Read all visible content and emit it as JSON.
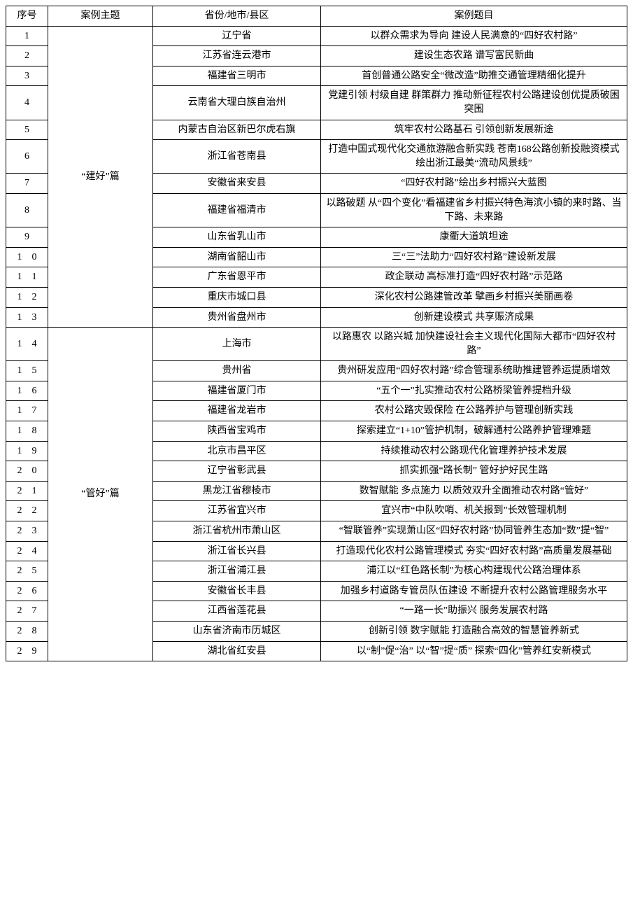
{
  "table": {
    "columns": {
      "seq": "序号",
      "theme": "案例主题",
      "region": "省份/地市/县区",
      "title": "案例题目"
    },
    "column_widths": {
      "seq": 60,
      "theme": 150,
      "region": 240
    },
    "font_family": "SimSun",
    "font_size_pt": 14,
    "border_color": "#000000",
    "background_color": "#ffffff",
    "themes": [
      {
        "label": "“建好”篇",
        "start": 1,
        "end": 13
      },
      {
        "label": "“管好”篇",
        "start": 14,
        "end": 29
      }
    ],
    "rows": [
      {
        "seq": "1",
        "region": "辽宁省",
        "title": "以群众需求为导向 建设人民满意的“四好农村路”"
      },
      {
        "seq": "2",
        "region": "江苏省连云港市",
        "title": "建设生态农路 谱写富民新曲"
      },
      {
        "seq": "3",
        "region": "福建省三明市",
        "title": "首创普通公路安全“微改造”助推交通管理精细化提升"
      },
      {
        "seq": "4",
        "region": "云南省大理白族自治州",
        "title": "党建引领 村级自建 群策群力 推动新征程农村公路建设创优提质破困突围"
      },
      {
        "seq": "5",
        "region": "内蒙古自治区新巴尔虎右旗",
        "title": "筑牢农村公路基石 引领创新发展新途"
      },
      {
        "seq": "6",
        "region": "浙江省苍南县",
        "title": "打造中国式现代化交通旅游融合新实践 苍南168公路创新投融资模式绘出浙江最美“流动风景线”"
      },
      {
        "seq": "7",
        "region": "安徽省来安县",
        "title": "“四好农村路”绘出乡村振兴大蓝图"
      },
      {
        "seq": "8",
        "region": "福建省福清市",
        "title": "以路破题 从“四个变化”看福建省乡村振兴特色海滨小镇的来时路、当下路、未来路"
      },
      {
        "seq": "9",
        "region": "山东省乳山市",
        "title": "康衢大道筑坦途"
      },
      {
        "seq": "10",
        "region": "湖南省韶山市",
        "title": "三“三”法助力“四好农村路”建设新发展"
      },
      {
        "seq": "11",
        "region": "广东省恩平市",
        "title": "政企联动 高标准打造“四好农村路”示范路"
      },
      {
        "seq": "12",
        "region": "重庆市城口县",
        "title": "深化农村公路建管改革 擘画乡村振兴美丽画卷"
      },
      {
        "seq": "13",
        "region": "贵州省盘州市",
        "title": "创新建设模式 共享赈济成果"
      },
      {
        "seq": "14",
        "region": "上海市",
        "title": "以路惠农 以路兴城 加快建设社会主义现代化国际大都市“四好农村路”"
      },
      {
        "seq": "15",
        "region": "贵州省",
        "title": "贵州研发应用“四好农村路”综合管理系统助推建管养运提质增效"
      },
      {
        "seq": "16",
        "region": "福建省厦门市",
        "title": "“五个一”扎实推动农村公路桥梁管养提档升级"
      },
      {
        "seq": "17",
        "region": "福建省龙岩市",
        "title": "农村公路灾毁保险 在公路养护与管理创新实践"
      },
      {
        "seq": "18",
        "region": "陕西省宝鸡市",
        "title": "探索建立“1+10”管护机制，破解通村公路养护管理难题"
      },
      {
        "seq": "19",
        "region": "北京市昌平区",
        "title": "持续推动农村公路现代化管理养护技术发展"
      },
      {
        "seq": "20",
        "region": "辽宁省彰武县",
        "title": "抓实抓强“路长制” 管好护好民生路"
      },
      {
        "seq": "21",
        "region": "黑龙江省穆棱市",
        "title": "数智赋能 多点施力 以质效双升全面推动农村路“管好”"
      },
      {
        "seq": "22",
        "region": "江苏省宜兴市",
        "title": "宜兴市“中队吹哨、机关报到”长效管理机制"
      },
      {
        "seq": "23",
        "region": "浙江省杭州市萧山区",
        "title": "“智联管养”实现萧山区“四好农村路”协同管养生态加“数”提“智”"
      },
      {
        "seq": "24",
        "region": "浙江省长兴县",
        "title": "打造现代化农村公路管理模式 夯实“四好农村路”高质量发展基础"
      },
      {
        "seq": "25",
        "region": "浙江省浦江县",
        "title": "浦江以“红色路长制”为核心构建现代公路治理体系"
      },
      {
        "seq": "26",
        "region": "安徽省长丰县",
        "title": "加强乡村道路专管员队伍建设 不断提升农村公路管理服务水平"
      },
      {
        "seq": "27",
        "region": "江西省莲花县",
        "title": "“一路一长”助振兴 服务发展农村路"
      },
      {
        "seq": "28",
        "region": "山东省济南市历城区",
        "title": "创新引领 数字赋能 打造融合高效的智慧管养新式"
      },
      {
        "seq": "29",
        "region": "湖北省红安县",
        "title": "以“制”促“治” 以“智”提“质” 探索“四化”管养红安新模式"
      }
    ]
  }
}
